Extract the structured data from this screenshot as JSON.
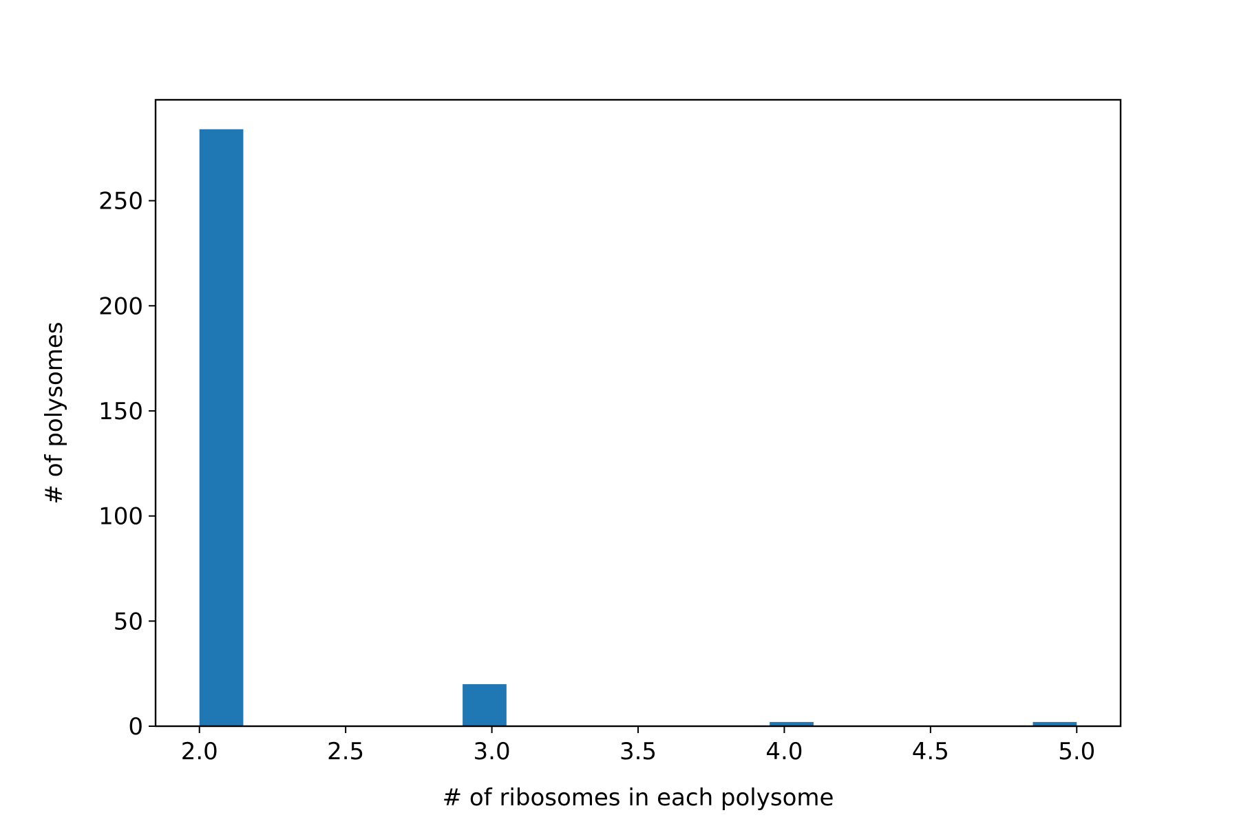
{
  "chart_data": {
    "type": "bar",
    "title": "",
    "xlabel": "# of ribosomes in each polysome",
    "ylabel": "# of polysomes",
    "xlim": [
      1.85,
      5.15
    ],
    "ylim": [
      0,
      298
    ],
    "x_ticks": [
      {
        "value": 2.0,
        "label": "2.0"
      },
      {
        "value": 2.5,
        "label": "2.5"
      },
      {
        "value": 3.0,
        "label": "3.0"
      },
      {
        "value": 3.5,
        "label": "3.5"
      },
      {
        "value": 4.0,
        "label": "4.0"
      },
      {
        "value": 4.5,
        "label": "4.5"
      },
      {
        "value": 5.0,
        "label": "5.0"
      }
    ],
    "y_ticks": [
      {
        "value": 0,
        "label": "0"
      },
      {
        "value": 50,
        "label": "50"
      },
      {
        "value": 100,
        "label": "100"
      },
      {
        "value": 150,
        "label": "150"
      },
      {
        "value": 200,
        "label": "200"
      },
      {
        "value": 250,
        "label": "250"
      }
    ],
    "bars": [
      {
        "x_start": 2.0,
        "x_end": 2.15,
        "value": 284
      },
      {
        "x_start": 2.9,
        "x_end": 3.05,
        "value": 20
      },
      {
        "x_start": 3.95,
        "x_end": 4.1,
        "value": 2
      },
      {
        "x_start": 4.85,
        "x_end": 5.0,
        "value": 2
      }
    ],
    "grid": false,
    "bar_color": "#1f77b4"
  }
}
